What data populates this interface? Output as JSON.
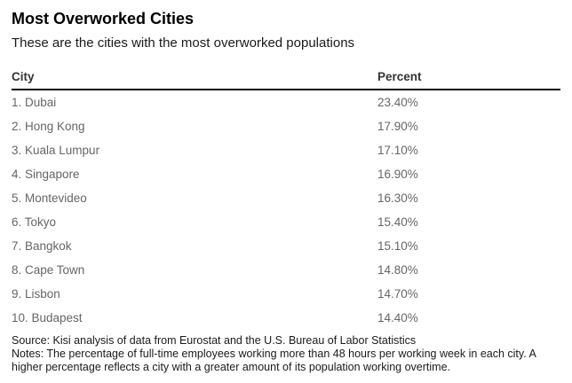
{
  "header": {
    "title": "Most Overworked Cities",
    "subtitle": "These are the cities with the most overworked populations"
  },
  "table": {
    "columns": [
      "City",
      "Percent"
    ],
    "rows": [
      {
        "city": "1. Dubai",
        "percent": "23.40%"
      },
      {
        "city": "2. Hong Kong",
        "percent": "17.90%"
      },
      {
        "city": "3. Kuala Lumpur",
        "percent": "17.10%"
      },
      {
        "city": "4. Singapore",
        "percent": "16.90%"
      },
      {
        "city": "5. Montevideo",
        "percent": "16.30%"
      },
      {
        "city": "6. Tokyo",
        "percent": "15.40%"
      },
      {
        "city": "7. Bangkok",
        "percent": "15.10%"
      },
      {
        "city": "8. Cape Town",
        "percent": "14.80%"
      },
      {
        "city": "9. Lisbon",
        "percent": "14.70%"
      },
      {
        "city": "10. Budapest",
        "percent": "14.40%"
      }
    ]
  },
  "footer": {
    "source": "Source: Kisi analysis of data from Eurostat and the U.S. Bureau of Labor Statistics",
    "notes": "Notes: The percentage of full-time employees working more than 48 hours per working week in each city. A higher percentage reflects a city with a greater amount of its population working overtime."
  },
  "colors": {
    "title": "#000000",
    "header_text": "#333333",
    "row_text": "#666666",
    "rule": "#000000",
    "background": "#ffffff"
  },
  "chart_data": {
    "type": "table",
    "title": "Most Overworked Cities",
    "subtitle": "These are the cities with the most overworked populations",
    "columns": [
      "City",
      "Percent"
    ],
    "categories": [
      "Dubai",
      "Hong Kong",
      "Kuala Lumpur",
      "Singapore",
      "Montevideo",
      "Tokyo",
      "Bangkok",
      "Cape Town",
      "Lisbon",
      "Budapest"
    ],
    "ranks": [
      1,
      2,
      3,
      4,
      5,
      6,
      7,
      8,
      9,
      10
    ],
    "values": [
      23.4,
      17.9,
      17.1,
      16.9,
      16.3,
      15.4,
      15.1,
      14.8,
      14.7,
      14.4
    ],
    "value_unit": "%",
    "source": "Source: Kisi analysis of data from Eurostat and the U.S. Bureau of Labor Statistics",
    "notes": "Notes: The percentage of full-time employees working more than 48 hours per working week in each city. A higher percentage reflects a city with a greater amount of its population working overtime."
  }
}
